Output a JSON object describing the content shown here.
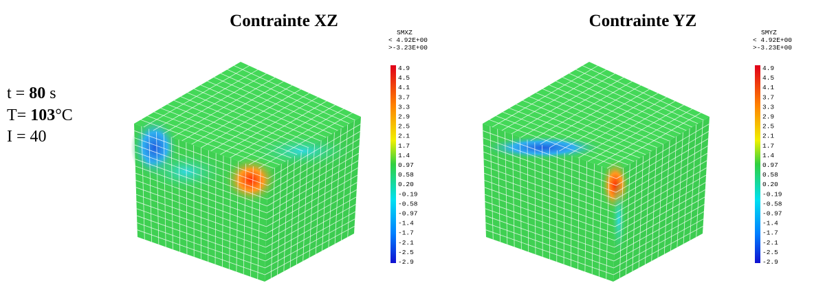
{
  "conditions": [
    [
      "t = ",
      "80",
      " s"
    ],
    [
      "T= ",
      "103",
      "°C"
    ],
    [
      "I = 40"
    ]
  ],
  "panels": [
    {
      "title": "Contrainte XZ",
      "legend_title": "SMXZ",
      "max_label": "< 4.92E+00",
      "min_label": ">-3.23E+00",
      "levels": [
        "4.9",
        "4.5",
        "4.1",
        "3.7",
        "3.3",
        "2.9",
        "2.5",
        "2.1",
        "1.7",
        "1.4",
        "0.97",
        "0.58",
        "0.20",
        "-0.19",
        "-0.58",
        "-0.97",
        "-1.4",
        "-1.7",
        "-2.1",
        "-2.5",
        "-2.9"
      ]
    },
    {
      "title": "Contrainte YZ",
      "legend_title": "SMYZ",
      "max_label": "< 4.92E+00",
      "min_label": ">-3.23E+00",
      "levels": [
        "4.9",
        "4.5",
        "4.1",
        "3.7",
        "3.3",
        "2.9",
        "2.5",
        "2.1",
        "1.7",
        "1.4",
        "0.97",
        "0.58",
        "0.20",
        "-0.19",
        "-0.58",
        "-0.97",
        "-1.4",
        "-1.7",
        "-2.1",
        "-2.5",
        "-2.9"
      ]
    }
  ]
}
